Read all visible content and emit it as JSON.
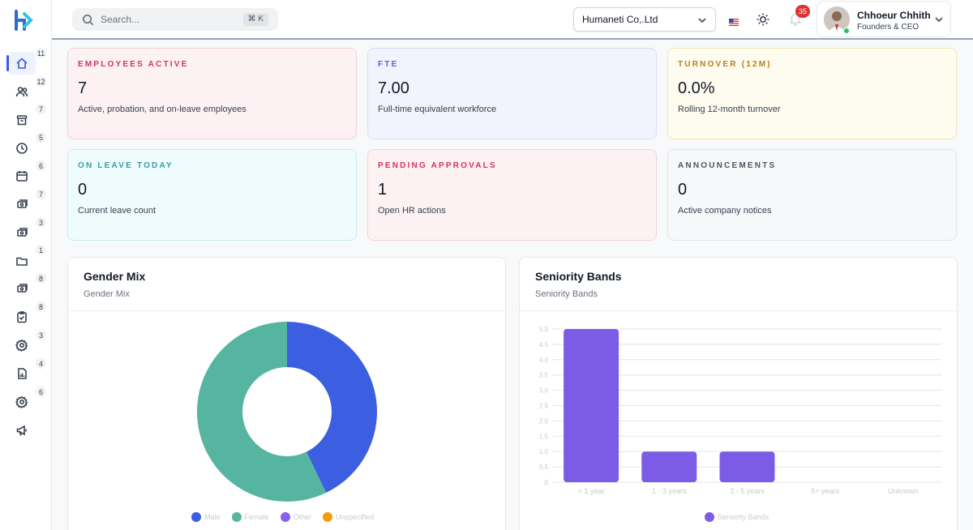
{
  "sidebar": {
    "items": [
      {
        "icon": "home-icon",
        "badge": "11",
        "active": true
      },
      {
        "icon": "users-icon",
        "badge": "12"
      },
      {
        "icon": "archive-icon",
        "badge": "7"
      },
      {
        "icon": "clock-icon",
        "badge": "5"
      },
      {
        "icon": "calendar-icon",
        "badge": "6"
      },
      {
        "icon": "money-icon",
        "badge": "7"
      },
      {
        "icon": "payroll-icon",
        "badge": "3"
      },
      {
        "icon": "folder-icon",
        "badge": "1"
      },
      {
        "icon": "cash-icon",
        "badge": "8"
      },
      {
        "icon": "clipboard-check-icon",
        "badge": "8"
      },
      {
        "icon": "gear-icon",
        "badge": "3"
      },
      {
        "icon": "report-icon",
        "badge": "4"
      },
      {
        "icon": "settings-icon",
        "badge": "6"
      },
      {
        "icon": "megaphone-icon",
        "badge": ""
      }
    ]
  },
  "header": {
    "search_placeholder": "Search...",
    "search_shortcut": "⌘ K",
    "company": "Humaneti Co,.Ltd",
    "notifications": "35",
    "user_name": "Chhoeur Chhith",
    "user_role": "Founders & CEO"
  },
  "stats": [
    {
      "label": "EMPLOYEES ACTIVE",
      "value": "7",
      "desc": "Active, probation, and on-leave employees"
    },
    {
      "label": "FTE",
      "value": "7.00",
      "desc": "Full-time equivalent workforce"
    },
    {
      "label": "TURNOVER (12M)",
      "value": "0.0%",
      "desc": "Rolling 12-month turnover"
    },
    {
      "label": "ON LEAVE TODAY",
      "value": "0",
      "desc": "Current leave count"
    },
    {
      "label": "PENDING APPROVALS",
      "value": "1",
      "desc": "Open HR actions"
    },
    {
      "label": "ANNOUNCEMENTS",
      "value": "0",
      "desc": "Active company notices"
    }
  ],
  "colors": {
    "accent": "#3b5bdb",
    "male": "#3b5fe0",
    "female": "#56b5a0",
    "other": "#8b5cf6",
    "unspecified": "#f59e0b",
    "bar": "#7c5ce6"
  },
  "panels": {
    "gender": {
      "title": "Gender Mix",
      "subtitle": "Gender Mix"
    },
    "seniority": {
      "title": "Seniority Bands",
      "subtitle": "Seniority Bands"
    }
  },
  "chart_data": [
    {
      "type": "pie",
      "title": "Gender Mix",
      "categories": [
        "Male",
        "Female",
        "Other",
        "Unspecified"
      ],
      "values": [
        3,
        4,
        0,
        0
      ],
      "donut": true,
      "legend": "bottom"
    },
    {
      "type": "bar",
      "title": "Seniority Bands",
      "categories": [
        "< 1 year",
        "1 - 3 years",
        "3 - 5 years",
        "5+ years",
        "Unknown"
      ],
      "series": [
        {
          "name": "Seniority Bands",
          "values": [
            5,
            1,
            1,
            0,
            0
          ]
        }
      ],
      "ylim": [
        0,
        5
      ],
      "yticks": [
        "0",
        "0.5",
        "1.0",
        "1.5",
        "2.0",
        "2.5",
        "3.0",
        "3.5",
        "4.0",
        "4.5",
        "5.0"
      ],
      "grid": true,
      "legend": "bottom"
    }
  ]
}
